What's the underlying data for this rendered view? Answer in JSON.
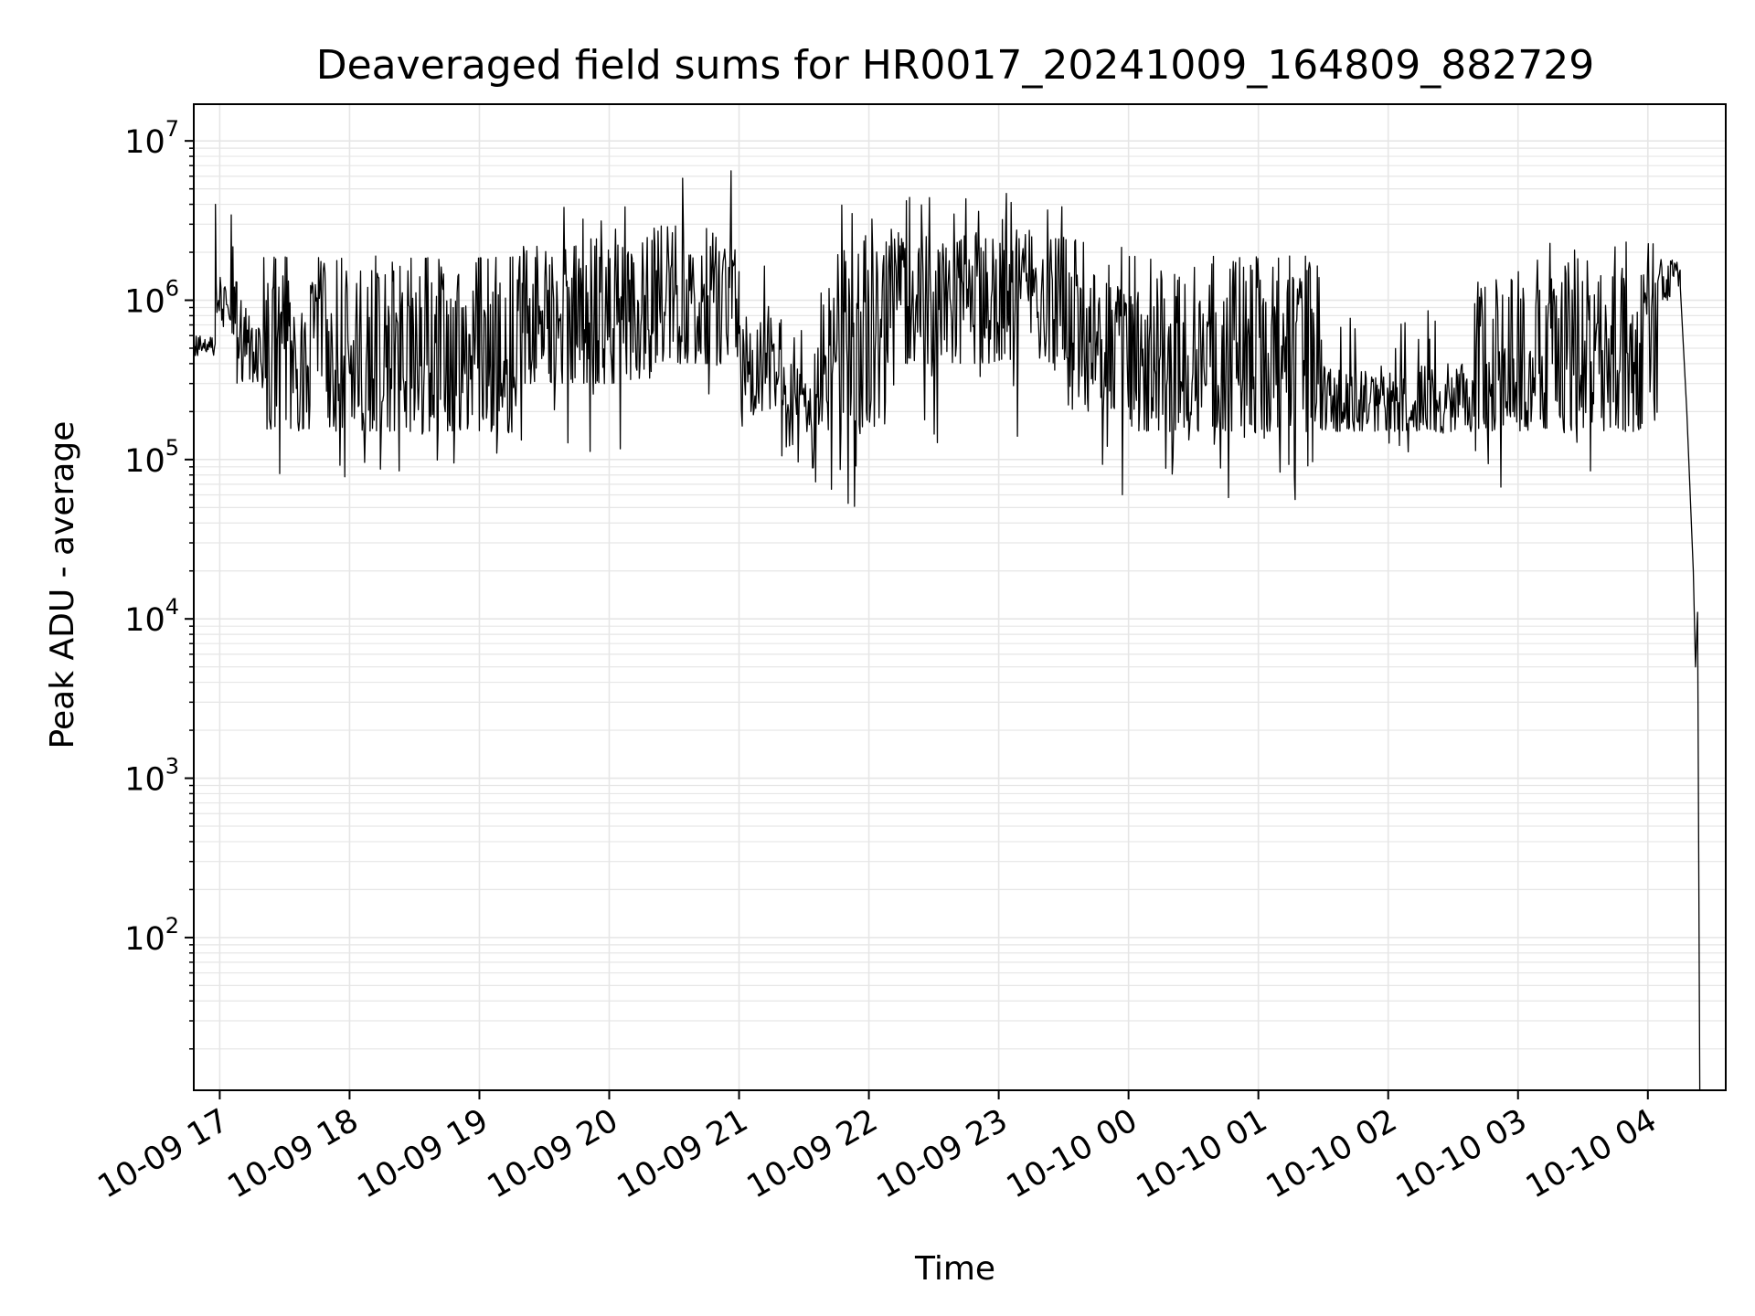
{
  "chart_data": {
    "type": "line",
    "title": "Deaveraged field sums for HR0017_20241009_164809_882729",
    "xlabel": "Time",
    "ylabel": "Peak ADU - average",
    "yscale": "log",
    "grid": true,
    "line_color": "#000000",
    "grid_color": "#e6e6e6",
    "xlim": [
      "2024-10-09 16:48",
      "2024-10-10 04:36"
    ],
    "ylim": [
      11,
      17000000
    ],
    "x_ticks": [
      {
        "time": "2024-10-09 17:00",
        "label": "10-09 17"
      },
      {
        "time": "2024-10-09 18:00",
        "label": "10-09 18"
      },
      {
        "time": "2024-10-09 19:00",
        "label": "10-09 19"
      },
      {
        "time": "2024-10-09 20:00",
        "label": "10-09 20"
      },
      {
        "time": "2024-10-09 21:00",
        "label": "10-09 21"
      },
      {
        "time": "2024-10-09 22:00",
        "label": "10-09 22"
      },
      {
        "time": "2024-10-09 23:00",
        "label": "10-09 23"
      },
      {
        "time": "2024-10-10 00:00",
        "label": "10-10 00"
      },
      {
        "time": "2024-10-10 01:00",
        "label": "10-10 01"
      },
      {
        "time": "2024-10-10 02:00",
        "label": "10-10 02"
      },
      {
        "time": "2024-10-10 03:00",
        "label": "10-10 03"
      },
      {
        "time": "2024-10-10 04:00",
        "label": "10-10 04"
      }
    ],
    "y_ticks": [
      {
        "value": 100,
        "base": "10",
        "exp": "2"
      },
      {
        "value": 1000,
        "base": "10",
        "exp": "3"
      },
      {
        "value": 10000,
        "base": "10",
        "exp": "4"
      },
      {
        "value": 100000,
        "base": "10",
        "exp": "5"
      },
      {
        "value": 1000000,
        "base": "10",
        "exp": "6"
      },
      {
        "value": 10000000,
        "base": "10",
        "exp": "7"
      }
    ],
    "segments": [
      {
        "start": "2024-10-09 16:48",
        "end": "2024-10-09 16:58",
        "floor": 450000,
        "ceil": 600000,
        "spike": 600000,
        "dip": 400000
      },
      {
        "start": "2024-10-09 16:58",
        "end": "2024-10-09 17:08",
        "floor": 700000,
        "ceil": 1400000,
        "spike": 5000000,
        "dip": 600000
      },
      {
        "start": "2024-10-09 17:08",
        "end": "2024-10-09 17:20",
        "floor": 300000,
        "ceil": 800000,
        "spike": 1100000,
        "dip": 250000
      },
      {
        "start": "2024-10-09 17:20",
        "end": "2024-10-09 18:20",
        "floor": 150000,
        "ceil": 1800000,
        "spike": 1900000,
        "dip": 75000
      },
      {
        "start": "2024-10-09 18:20",
        "end": "2024-10-09 19:20",
        "floor": 150000,
        "ceil": 1800000,
        "spike": 1900000,
        "dip": 80000
      },
      {
        "start": "2024-10-09 19:20",
        "end": "2024-10-09 20:20",
        "floor": 300000,
        "ceil": 2500000,
        "spike": 4000000,
        "dip": 100000
      },
      {
        "start": "2024-10-09 20:20",
        "end": "2024-10-09 21:00",
        "floor": 400000,
        "ceil": 3000000,
        "spike": 9000000,
        "dip": 100000
      },
      {
        "start": "2024-10-09 21:00",
        "end": "2024-10-09 21:20",
        "floor": 200000,
        "ceil": 800000,
        "spike": 3500000,
        "dip": 85000
      },
      {
        "start": "2024-10-09 21:20",
        "end": "2024-10-09 21:35",
        "floor": 120000,
        "ceil": 400000,
        "spike": 700000,
        "dip": 60000
      },
      {
        "start": "2024-10-09 21:35",
        "end": "2024-10-09 22:10",
        "floor": 150000,
        "ceil": 2500000,
        "spike": 4000000,
        "dip": 50000
      },
      {
        "start": "2024-10-09 22:10",
        "end": "2024-10-09 23:30",
        "floor": 400000,
        "ceil": 2800000,
        "spike": 4800000,
        "dip": 100000
      },
      {
        "start": "2024-10-09 23:30",
        "end": "2024-10-10 00:00",
        "floor": 200000,
        "ceil": 1700000,
        "spike": 2500000,
        "dip": 45000
      },
      {
        "start": "2024-10-10 00:00",
        "end": "2024-10-10 01:30",
        "floor": 150000,
        "ceil": 1800000,
        "spike": 1900000,
        "dip": 55000
      },
      {
        "start": "2024-10-10 01:30",
        "end": "2024-10-10 02:40",
        "floor": 150000,
        "ceil": 400000,
        "spike": 900000,
        "dip": 100000
      },
      {
        "start": "2024-10-10 02:40",
        "end": "2024-10-10 03:10",
        "floor": 150000,
        "ceil": 1500000,
        "spike": 2300000,
        "dip": 65000
      },
      {
        "start": "2024-10-10 03:10",
        "end": "2024-10-10 04:05",
        "floor": 150000,
        "ceil": 1800000,
        "spike": 2500000,
        "dip": 70000
      },
      {
        "start": "2024-10-10 04:05",
        "end": "2024-10-10 04:15",
        "floor": 1000000,
        "ceil": 1800000,
        "spike": 1800000,
        "dip": 900000
      }
    ],
    "tail": [
      {
        "time": "2024-10-10 04:15",
        "value": 1200000
      },
      {
        "time": "2024-10-10 04:18",
        "value": 200000
      },
      {
        "time": "2024-10-10 04:21",
        "value": 20000
      },
      {
        "time": "2024-10-10 04:22",
        "value": 5000
      },
      {
        "time": "2024-10-10 04:23",
        "value": 11000
      },
      {
        "time": "2024-10-10 04:24",
        "value": 11
      }
    ]
  }
}
